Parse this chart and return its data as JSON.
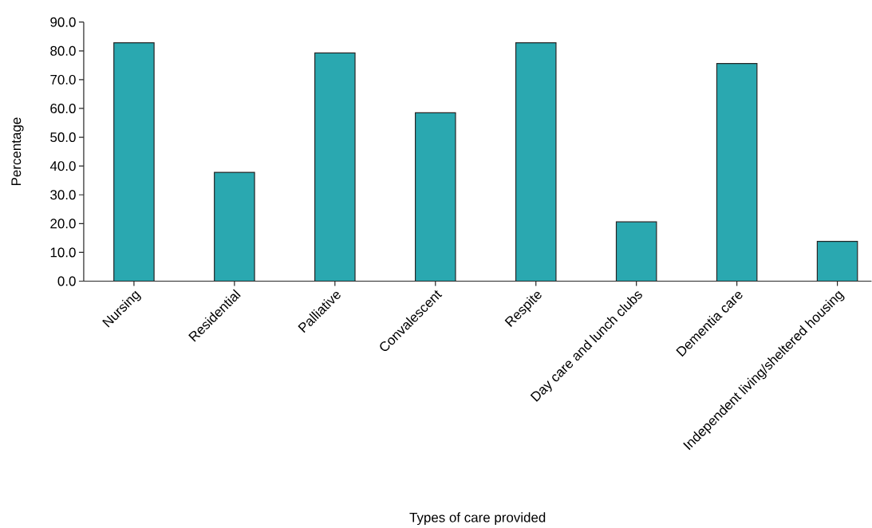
{
  "chart_data": {
    "type": "bar",
    "xlabel": "Types of care provided",
    "ylabel": "Percentage",
    "categories": [
      "Nursing",
      "Residential",
      "Palliative",
      "Convalescent",
      "Respite",
      "Day care and lunch clubs",
      "Dementia care",
      "Independent living/sheltered housing"
    ],
    "values": [
      82.8,
      37.8,
      79.3,
      58.5,
      82.8,
      20.6,
      75.6,
      13.8
    ],
    "color": "#2aa8b0",
    "ylim": [
      0,
      90
    ],
    "yticks": [
      {
        "value": 0,
        "label": "0.0"
      },
      {
        "value": 10,
        "label": "10.0"
      },
      {
        "value": 20,
        "label": "20.0"
      },
      {
        "value": 30,
        "label": "30.0"
      },
      {
        "value": 40,
        "label": "40.0"
      },
      {
        "value": 50,
        "label": "50.0"
      },
      {
        "value": 60,
        "label": "60.0"
      },
      {
        "value": 70,
        "label": "70.0"
      },
      {
        "value": 80,
        "label": "80.0"
      },
      {
        "value": 90,
        "label": "90.0"
      }
    ],
    "grid": false
  }
}
